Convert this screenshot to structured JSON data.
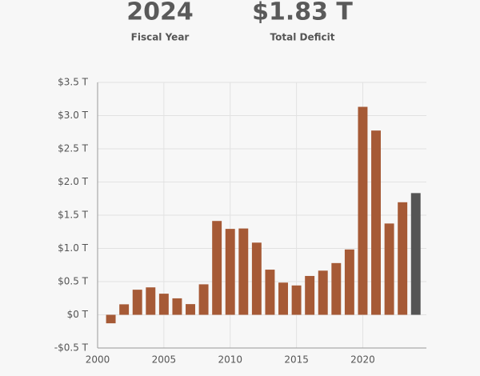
{
  "header": {
    "year": "2024",
    "year_label": "Fiscal Year",
    "deficit": "$1.83 T",
    "deficit_label": "Total Deficit"
  },
  "chart_data": {
    "type": "bar",
    "x": [
      2001,
      2002,
      2003,
      2004,
      2005,
      2006,
      2007,
      2008,
      2009,
      2010,
      2011,
      2012,
      2013,
      2014,
      2015,
      2016,
      2017,
      2018,
      2019,
      2020,
      2021,
      2022,
      2023,
      2024
    ],
    "values": [
      -0.128,
      0.158,
      0.378,
      0.413,
      0.318,
      0.248,
      0.161,
      0.459,
      1.413,
      1.294,
      1.3,
      1.087,
      0.68,
      0.485,
      0.442,
      0.585,
      0.665,
      0.779,
      0.984,
      3.132,
      2.775,
      1.375,
      1.695,
      1.833
    ],
    "color": "#a65a36",
    "highlight_x": 2024,
    "highlight_color": "#555555",
    "xlim": [
      2000,
      2024.8
    ],
    "xticks": [
      2000,
      2005,
      2010,
      2015,
      2020
    ],
    "ylim": [
      -0.5,
      3.5
    ],
    "yticks": [
      {
        "value": -0.5,
        "label": "-$0.5 T"
      },
      {
        "value": 0,
        "label": "$0 T"
      },
      {
        "value": 0.5,
        "label": "$0.5 T"
      },
      {
        "value": 1,
        "label": "$1.0 T"
      },
      {
        "value": 1.5,
        "label": "$1.5 T"
      },
      {
        "value": 2,
        "label": "$2.0 T"
      },
      {
        "value": 2.5,
        "label": "$2.5 T"
      },
      {
        "value": 3,
        "label": "$3.0 T"
      },
      {
        "value": 3.5,
        "label": "$3.5 T"
      }
    ],
    "grid": true
  }
}
